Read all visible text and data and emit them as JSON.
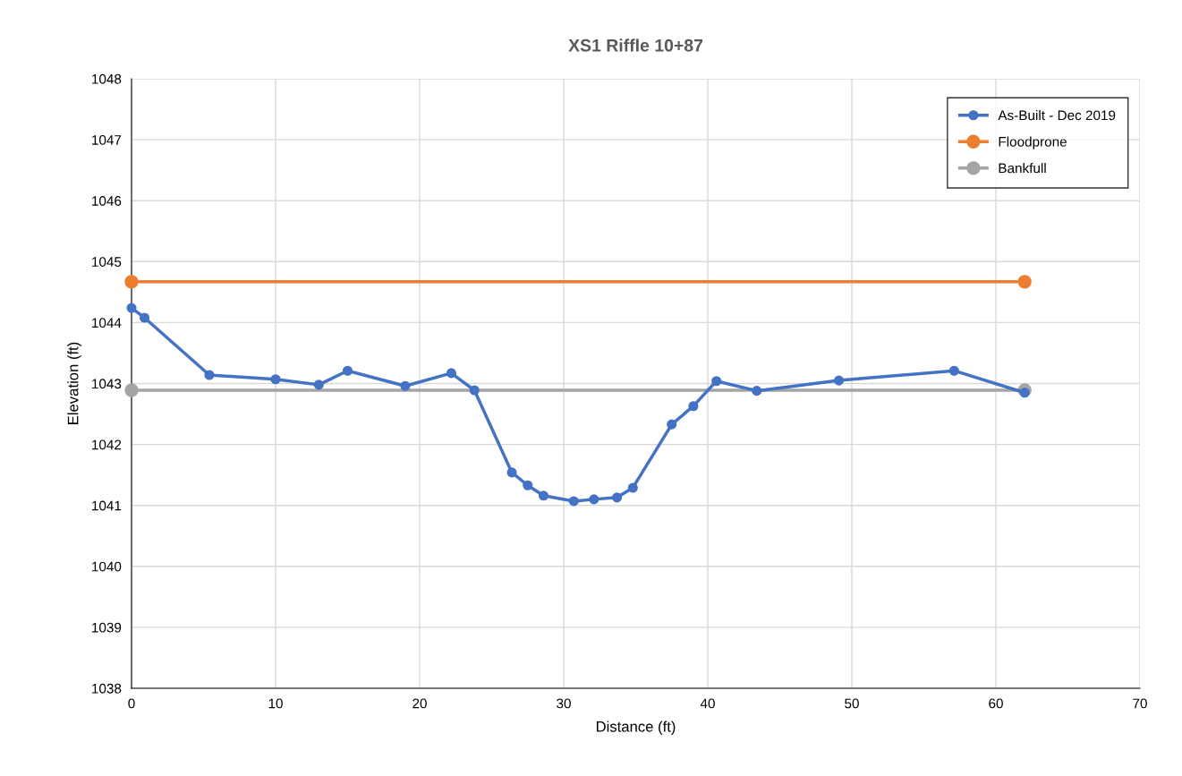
{
  "chart_data": {
    "type": "line",
    "title": "XS1 Riffle 10+87",
    "xlabel": "Distance (ft)",
    "ylabel": "Elevation (ft)",
    "xlim": [
      0,
      70
    ],
    "xticks": [
      0,
      10,
      20,
      30,
      40,
      50,
      60,
      70
    ],
    "ylim": [
      1038,
      1048
    ],
    "yticks": [
      1038,
      1039,
      1040,
      1041,
      1042,
      1043,
      1044,
      1045,
      1046,
      1047,
      1048
    ],
    "grid": true,
    "legend": "top right",
    "marker": "circle",
    "line_style": "solid",
    "series": [
      {
        "name": "As-Built - Dec 2019",
        "color": "#4472c4",
        "x": [
          0,
          0.9,
          5.4,
          10,
          13,
          15,
          19,
          22.2,
          23.8,
          26.4,
          27.5,
          28.6,
          30.7,
          32.1,
          33.7,
          34.8,
          37.5,
          39,
          40.6,
          43.4,
          49.1,
          57.1,
          62
        ],
        "values": [
          1044.24,
          1044.08,
          1043.14,
          1043.07,
          1042.98,
          1043.21,
          1042.96,
          1043.17,
          1042.89,
          1041.54,
          1041.33,
          1041.16,
          1041.07,
          1041.1,
          1041.13,
          1041.29,
          1042.33,
          1042.63,
          1043.04,
          1042.88,
          1043.05,
          1043.21,
          1042.85
        ]
      },
      {
        "name": "Floodprone",
        "color": "#ed7d31",
        "x": [
          0,
          62
        ],
        "values": [
          1044.67,
          1044.67
        ]
      },
      {
        "name": "Bankfull",
        "color": "#a5a5a5",
        "x": [
          0,
          62
        ],
        "values": [
          1042.89,
          1042.89
        ]
      }
    ]
  }
}
